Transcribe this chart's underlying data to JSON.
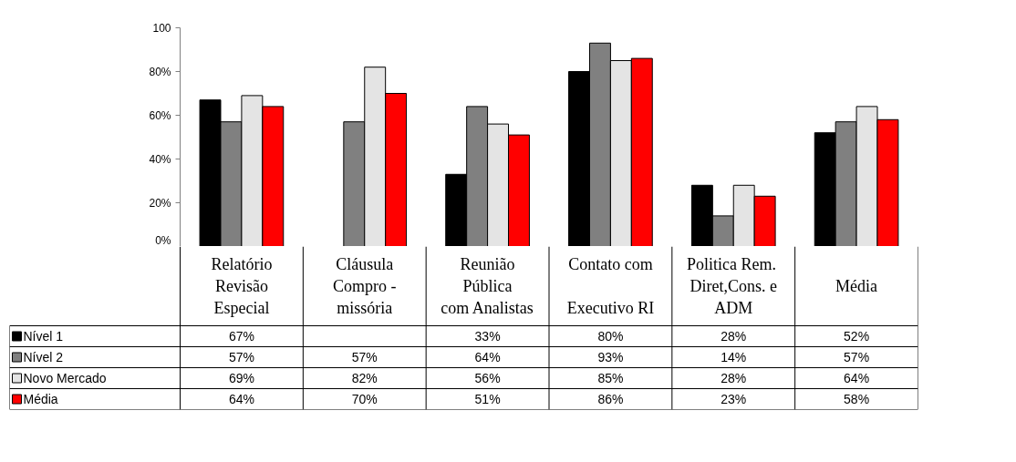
{
  "chart_data": {
    "type": "bar",
    "categories": [
      "Relatório\nRevisão\nEspecial",
      "Cláusula\nCompro -\nmissória",
      "Reunião\nPública\ncom Analistas",
      "Contato com\n\nExecutivo RI",
      "Politica  Rem.\nDiret,Cons. e\nADM",
      "Média"
    ],
    "series": [
      {
        "name": "Nível 1",
        "color": "#000000",
        "values": [
          67,
          null,
          33,
          80,
          28,
          52
        ],
        "value_labels": [
          "67%",
          null,
          "33%",
          "80%",
          "28%",
          "52%"
        ]
      },
      {
        "name": "Nível 2",
        "color": "#808080",
        "values": [
          57,
          57,
          64,
          93,
          14,
          57
        ],
        "value_labels": [
          "57%",
          "57%",
          "64%",
          "93%",
          "14%",
          "57%"
        ]
      },
      {
        "name": "Novo Mercado",
        "color": "#e4e4e4",
        "values": [
          69,
          82,
          56,
          85,
          28,
          64
        ],
        "value_labels": [
          "69%",
          "82%",
          "56%",
          "85%",
          "28%",
          "64%"
        ]
      },
      {
        "name": "Média",
        "color": "#ff0000",
        "values": [
          64,
          70,
          51,
          86,
          23,
          58
        ],
        "value_labels": [
          "64%",
          "70%",
          "51%",
          "86%",
          "23%",
          "58%"
        ]
      }
    ],
    "ylim": [
      0,
      100
    ],
    "yticks": [
      {
        "value": 0,
        "label": "0%"
      },
      {
        "value": 20,
        "label": "20%"
      },
      {
        "value": 40,
        "label": "40%"
      },
      {
        "value": 60,
        "label": "60%"
      },
      {
        "value": 80,
        "label": "80%"
      },
      {
        "value": 100,
        "label": "100"
      }
    ],
    "grid": false,
    "legend": "bottom"
  }
}
